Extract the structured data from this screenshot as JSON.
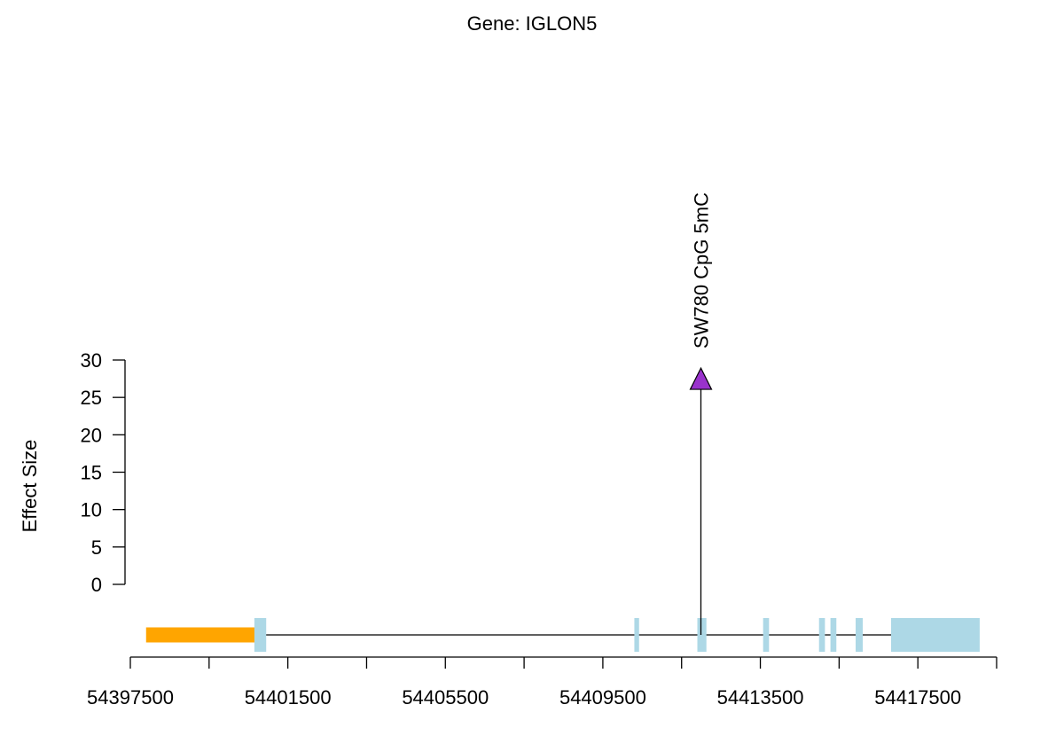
{
  "chart_data": {
    "type": "lollipop",
    "title": "Gene: IGLON5",
    "ylabel": "Effect Size",
    "xlabel": "",
    "ylim": [
      0,
      30
    ],
    "yticks": [
      0,
      5,
      10,
      15,
      20,
      25,
      30
    ],
    "xlim": [
      54397500,
      54419500
    ],
    "xticks": [
      54397500,
      54399500,
      54401500,
      54403500,
      54405500,
      54407500,
      54409500,
      54411500,
      54413500,
      54415500,
      54417500,
      54419500
    ],
    "xtick_labels": [
      {
        "value": 54397500,
        "label": "54397500"
      },
      {
        "value": 54401500,
        "label": "54401500"
      },
      {
        "value": 54405500,
        "label": "54405500"
      },
      {
        "value": 54409500,
        "label": "54409500"
      },
      {
        "value": 54413500,
        "label": "54413500"
      },
      {
        "value": 54417500,
        "label": "54417500"
      }
    ],
    "gene_line": {
      "start": 54398000,
      "end": 54417200,
      "color": "#000000"
    },
    "features": [
      {
        "kind": "other",
        "start": 54397900,
        "end": 54400870,
        "color": "#FFA500"
      },
      {
        "kind": "exon",
        "start": 54400650,
        "end": 54400950,
        "color": "#ADD8E6"
      },
      {
        "kind": "exon",
        "start": 54410300,
        "end": 54410420,
        "color": "#ADD8E6"
      },
      {
        "kind": "exon",
        "start": 54411900,
        "end": 54412130,
        "color": "#ADD8E6"
      },
      {
        "kind": "exon",
        "start": 54413570,
        "end": 54413720,
        "color": "#ADD8E6"
      },
      {
        "kind": "exon",
        "start": 54414990,
        "end": 54415140,
        "color": "#ADD8E6"
      },
      {
        "kind": "exon",
        "start": 54415280,
        "end": 54415430,
        "color": "#ADD8E6"
      },
      {
        "kind": "exon",
        "start": 54415920,
        "end": 54416100,
        "color": "#ADD8E6"
      },
      {
        "kind": "exon",
        "start": 54416820,
        "end": 54419070,
        "color": "#ADD8E6"
      }
    ],
    "points": [
      {
        "x": 54411990,
        "y": 27.5,
        "label": "SW780 CpG 5mC",
        "color": "#9932CC",
        "marker": "triangle"
      }
    ]
  }
}
